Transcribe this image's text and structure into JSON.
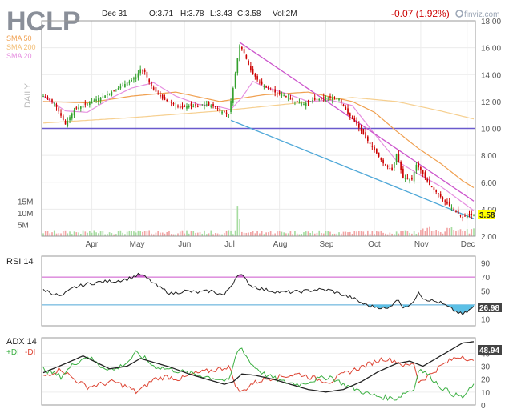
{
  "header": {
    "ticker": "HCLP",
    "date": "Dec 31",
    "open": "O:3.71",
    "high": "H:3.78",
    "low": "L:3.43",
    "close": "C:3.58",
    "volume": "Vol:2M",
    "change": "-0.07 (1.92%)",
    "brand": "finviz.com"
  },
  "colors": {
    "down": "#cc0000",
    "up": "#33a02c",
    "sma50": "#f0a050",
    "sma200": "#f6cf8f",
    "sma20": "#e68fe0",
    "trend_upper": "#cc55cc",
    "trend_lower": "#4fa8d8",
    "purple_line": "#6a5acd",
    "vol_up": "#a6dca0",
    "vol_down": "#f2a4a4",
    "rsi_line": "#222222",
    "rsi_fill": "#5cc0e6",
    "adx_line": "#222222",
    "plus_di": "#3cb043",
    "minus_di": "#dd4433",
    "price_label_bg": "#ffff00"
  },
  "chart_data": [
    {
      "type": "candlestick",
      "panel": "price",
      "period_label": "DAILY",
      "legend": [
        "SMA 50",
        "SMA 200",
        "SMA 20"
      ],
      "x_tick_labels": [
        "Apr",
        "May",
        "Jun",
        "Jul",
        "Aug",
        "Sep",
        "Oct",
        "Nov",
        "Dec"
      ],
      "x_tick_index": [
        22,
        42,
        64,
        85,
        107,
        128,
        150,
        171,
        192
      ],
      "y_ticks": [
        2,
        4,
        6,
        8,
        10,
        12,
        14,
        16,
        18
      ],
      "y_tick_labels": [
        "2.00",
        "4.00",
        "6.00",
        "8.00",
        "10.00",
        "12.00",
        "14.00",
        "16.00",
        "18.00"
      ],
      "ylim": [
        2,
        18
      ],
      "last_price": "3.58",
      "horizontal_line": 10.0,
      "close_anchors": [
        [
          0,
          12.4
        ],
        [
          5,
          11.9
        ],
        [
          10,
          10.3
        ],
        [
          14,
          11.4
        ],
        [
          18,
          11.7
        ],
        [
          22,
          12.0
        ],
        [
          26,
          12.3
        ],
        [
          30,
          12.6
        ],
        [
          34,
          13.0
        ],
        [
          38,
          13.4
        ],
        [
          42,
          13.8
        ],
        [
          44,
          14.4
        ],
        [
          46,
          14.2
        ],
        [
          48,
          13.4
        ],
        [
          50,
          12.9
        ],
        [
          54,
          12.2
        ],
        [
          58,
          11.9
        ],
        [
          62,
          11.5
        ],
        [
          66,
          11.7
        ],
        [
          70,
          11.6
        ],
        [
          74,
          11.8
        ],
        [
          78,
          11.6
        ],
        [
          80,
          11.3
        ],
        [
          84,
          11.1
        ],
        [
          86,
          13.0
        ],
        [
          88,
          15.2
        ],
        [
          89,
          16.2
        ],
        [
          91,
          15.6
        ],
        [
          94,
          14.3
        ],
        [
          98,
          13.4
        ],
        [
          102,
          12.9
        ],
        [
          106,
          12.6
        ],
        [
          110,
          12.4
        ],
        [
          114,
          12.0
        ],
        [
          118,
          11.8
        ],
        [
          122,
          12.1
        ],
        [
          126,
          12.2
        ],
        [
          130,
          12.3
        ],
        [
          134,
          12.2
        ],
        [
          138,
          11.1
        ],
        [
          142,
          10.3
        ],
        [
          146,
          9.3
        ],
        [
          150,
          8.4
        ],
        [
          154,
          7.4
        ],
        [
          158,
          6.9
        ],
        [
          160,
          8.1
        ],
        [
          163,
          6.3
        ],
        [
          167,
          6.2
        ],
        [
          169,
          7.3
        ],
        [
          171,
          6.9
        ],
        [
          175,
          5.8
        ],
        [
          179,
          5.1
        ],
        [
          183,
          4.4
        ],
        [
          187,
          3.8
        ],
        [
          190,
          3.4
        ],
        [
          192,
          3.5
        ],
        [
          195,
          3.58
        ]
      ],
      "sma20": [
        [
          0,
          12.4
        ],
        [
          10,
          11.3
        ],
        [
          20,
          11.2
        ],
        [
          30,
          12.2
        ],
        [
          40,
          13.0
        ],
        [
          50,
          13.4
        ],
        [
          60,
          12.4
        ],
        [
          70,
          11.8
        ],
        [
          80,
          11.6
        ],
        [
          85,
          11.4
        ],
        [
          90,
          12.3
        ],
        [
          95,
          13.5
        ],
        [
          100,
          13.1
        ],
        [
          110,
          12.6
        ],
        [
          120,
          12.0
        ],
        [
          130,
          12.1
        ],
        [
          140,
          11.7
        ],
        [
          150,
          9.6
        ],
        [
          160,
          7.6
        ],
        [
          170,
          6.6
        ],
        [
          180,
          5.7
        ],
        [
          190,
          4.5
        ],
        [
          195,
          3.9
        ]
      ],
      "sma50": [
        [
          0,
          12.0
        ],
        [
          20,
          11.9
        ],
        [
          40,
          12.4
        ],
        [
          60,
          12.7
        ],
        [
          80,
          12.0
        ],
        [
          100,
          12.5
        ],
        [
          120,
          12.7
        ],
        [
          140,
          12.0
        ],
        [
          150,
          11.2
        ],
        [
          160,
          9.8
        ],
        [
          170,
          8.5
        ],
        [
          180,
          7.4
        ],
        [
          190,
          6.1
        ],
        [
          195,
          5.6
        ]
      ],
      "sma200": [
        [
          0,
          10.4
        ],
        [
          40,
          10.8
        ],
        [
          80,
          11.3
        ],
        [
          110,
          11.8
        ],
        [
          140,
          12.3
        ],
        [
          160,
          12.0
        ],
        [
          180,
          11.3
        ],
        [
          195,
          10.7
        ]
      ],
      "trend_upper": [
        [
          89,
          16.4
        ],
        [
          195,
          4.6
        ]
      ],
      "trend_lower": [
        [
          85,
          10.6
        ],
        [
          195,
          3.3
        ]
      ]
    },
    {
      "type": "bar",
      "panel": "volume",
      "y_tick_labels": [
        "5M",
        "10M",
        "15M"
      ],
      "y_ticks": [
        5,
        10,
        15
      ],
      "ylim": [
        0,
        20
      ],
      "note": "volume in millions; daily bars colored by up/down"
    },
    {
      "type": "line",
      "panel": "rsi",
      "title": "RSI 14",
      "y_ticks": [
        10,
        30,
        50,
        70,
        90
      ],
      "overbought": 70,
      "midline": 50,
      "oversold": 30,
      "ylim": [
        0,
        100
      ],
      "last_value": "26.98",
      "rsi": [
        [
          0,
          52
        ],
        [
          8,
          42
        ],
        [
          14,
          55
        ],
        [
          20,
          60
        ],
        [
          26,
          63
        ],
        [
          32,
          64
        ],
        [
          38,
          67
        ],
        [
          42,
          72
        ],
        [
          44,
          74
        ],
        [
          48,
          66
        ],
        [
          52,
          56
        ],
        [
          58,
          46
        ],
        [
          64,
          50
        ],
        [
          70,
          48
        ],
        [
          76,
          50
        ],
        [
          82,
          44
        ],
        [
          86,
          62
        ],
        [
          88,
          74
        ],
        [
          90,
          72
        ],
        [
          94,
          58
        ],
        [
          100,
          52
        ],
        [
          108,
          48
        ],
        [
          116,
          49
        ],
        [
          124,
          52
        ],
        [
          130,
          51
        ],
        [
          136,
          44
        ],
        [
          140,
          40
        ],
        [
          144,
          33
        ],
        [
          148,
          28
        ],
        [
          152,
          27
        ],
        [
          156,
          24
        ],
        [
          160,
          38
        ],
        [
          163,
          28
        ],
        [
          167,
          30
        ],
        [
          170,
          50
        ],
        [
          172,
          40
        ],
        [
          176,
          36
        ],
        [
          180,
          33
        ],
        [
          186,
          22
        ],
        [
          190,
          16
        ],
        [
          192,
          20
        ],
        [
          195,
          27
        ]
      ]
    },
    {
      "type": "line",
      "panel": "adx",
      "title": "ADX 14",
      "legend": [
        "+DI",
        "-DI"
      ],
      "y_ticks": [
        0,
        10,
        20,
        30,
        40
      ],
      "ylim": [
        0,
        52
      ],
      "last_value": "48.94",
      "adx": [
        [
          0,
          25
        ],
        [
          10,
          32
        ],
        [
          18,
          38
        ],
        [
          24,
          33
        ],
        [
          30,
          28
        ],
        [
          38,
          30
        ],
        [
          44,
          36
        ],
        [
          50,
          33
        ],
        [
          58,
          29
        ],
        [
          66,
          24
        ],
        [
          74,
          20
        ],
        [
          82,
          16
        ],
        [
          86,
          18
        ],
        [
          90,
          24
        ],
        [
          96,
          23
        ],
        [
          104,
          20
        ],
        [
          112,
          16
        ],
        [
          120,
          12
        ],
        [
          128,
          10
        ],
        [
          136,
          12
        ],
        [
          144,
          18
        ],
        [
          152,
          26
        ],
        [
          160,
          32
        ],
        [
          166,
          34
        ],
        [
          172,
          30
        ],
        [
          178,
          36
        ],
        [
          184,
          42
        ],
        [
          190,
          48
        ],
        [
          195,
          48.94
        ]
      ],
      "plus_di": [
        [
          0,
          28
        ],
        [
          8,
          22
        ],
        [
          14,
          32
        ],
        [
          20,
          38
        ],
        [
          26,
          30
        ],
        [
          32,
          27
        ],
        [
          38,
          33
        ],
        [
          42,
          40
        ],
        [
          46,
          36
        ],
        [
          50,
          30
        ],
        [
          56,
          28
        ],
        [
          62,
          26
        ],
        [
          68,
          24
        ],
        [
          74,
          22
        ],
        [
          80,
          20
        ],
        [
          84,
          18
        ],
        [
          88,
          42
        ],
        [
          90,
          44
        ],
        [
          94,
          32
        ],
        [
          100,
          24
        ],
        [
          108,
          18
        ],
        [
          116,
          16
        ],
        [
          124,
          20
        ],
        [
          130,
          22
        ],
        [
          136,
          16
        ],
        [
          142,
          12
        ],
        [
          148,
          8
        ],
        [
          154,
          6
        ],
        [
          160,
          5
        ],
        [
          164,
          10
        ],
        [
          168,
          12
        ],
        [
          170,
          28
        ],
        [
          174,
          24
        ],
        [
          180,
          14
        ],
        [
          186,
          8
        ],
        [
          190,
          6
        ],
        [
          195,
          15
        ]
      ],
      "minus_di": [
        [
          0,
          22
        ],
        [
          8,
          28
        ],
        [
          14,
          20
        ],
        [
          20,
          14
        ],
        [
          26,
          16
        ],
        [
          32,
          18
        ],
        [
          38,
          14
        ],
        [
          42,
          10
        ],
        [
          46,
          14
        ],
        [
          50,
          20
        ],
        [
          56,
          22
        ],
        [
          62,
          20
        ],
        [
          68,
          24
        ],
        [
          74,
          26
        ],
        [
          80,
          28
        ],
        [
          84,
          30
        ],
        [
          88,
          12
        ],
        [
          90,
          10
        ],
        [
          94,
          16
        ],
        [
          100,
          20
        ],
        [
          108,
          22
        ],
        [
          116,
          24
        ],
        [
          124,
          20
        ],
        [
          130,
          18
        ],
        [
          136,
          24
        ],
        [
          142,
          28
        ],
        [
          148,
          32
        ],
        [
          154,
          36
        ],
        [
          160,
          34
        ],
        [
          164,
          30
        ],
        [
          168,
          32
        ],
        [
          170,
          18
        ],
        [
          174,
          22
        ],
        [
          180,
          30
        ],
        [
          186,
          36
        ],
        [
          190,
          38
        ],
        [
          195,
          33
        ]
      ]
    }
  ]
}
